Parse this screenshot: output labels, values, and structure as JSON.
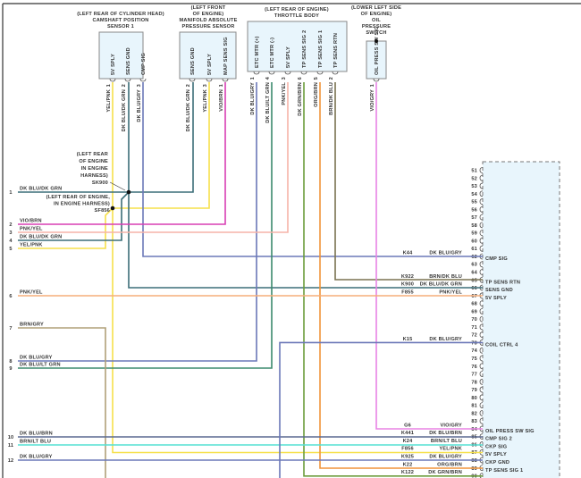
{
  "components": [
    {
      "id": "cam",
      "title": [
        "(LEFT REAR OF CYLINDER HEAD)",
        "CAMSHAFT POSITION",
        "SENSOR 1"
      ],
      "pins": [
        {
          "name": "5V SPLY",
          "num": "1",
          "wire": "YEL/PNK"
        },
        {
          "name": "SENS GND",
          "num": "2",
          "wire": "DK BLU/DK GRN"
        },
        {
          "name": "CMP SIG",
          "num": "3",
          "wire": "DK BLU/GRY"
        }
      ]
    },
    {
      "id": "map",
      "title": [
        "(LEFT FRONT",
        "OF ENGINE)",
        "MANIFOLD ABSOLUTE",
        "PRESSURE SENSOR"
      ],
      "pins": [
        {
          "name": "SENS GND",
          "num": "2",
          "wire": "DK BLU/DK GRN"
        },
        {
          "name": "5V SPLY",
          "num": "3",
          "wire": "YEL/PNK"
        },
        {
          "name": "MAP SENS SIG",
          "num": "1",
          "wire": "VIO/BRN"
        }
      ]
    },
    {
      "id": "tb",
      "title": [
        "(LEFT REAR OF ENGINE)",
        "THROTTLE BODY"
      ],
      "pins": [
        {
          "name": "ETC MTR (+)",
          "num": "1",
          "wire": "DK BLU/GRY"
        },
        {
          "name": "ETC MTR (-)",
          "num": "4",
          "wire": "DK BLU/LT GRN"
        },
        {
          "name": "5V SPLY",
          "num": "3",
          "wire": "PNK/YEL"
        },
        {
          "name": "TP SENS SIG 2",
          "num": "6",
          "wire": "DK GRN/BRN"
        },
        {
          "name": "TP SENS SIG 1",
          "num": "5",
          "wire": "ORG/BRN"
        },
        {
          "name": "TP SENS RTN",
          "num": "2",
          "wire": "BRN/DK BLU"
        }
      ]
    },
    {
      "id": "oil",
      "title": [
        "(LOWER LEFT SIDE",
        "OF ENGINE)",
        "OIL",
        "PRESSURE",
        "SWITCH"
      ],
      "pins": [
        {
          "name": "OIL PRESS SW SIG",
          "num": "1",
          "wire": "VIO/GRY"
        }
      ]
    }
  ],
  "splices": [
    {
      "id": "SK900",
      "location": [
        "(LEFT REAR",
        "OF ENGINE",
        "IN ENGINE",
        "HARNESS)"
      ]
    },
    {
      "id": "SF856",
      "location": [
        "(LEFT REAR OF ENGINE,",
        "IN ENGINE HARNESS)"
      ]
    }
  ],
  "harness_rows": [
    {
      "num": "1",
      "wire": "DK BLU/DK GRN"
    },
    {
      "num": "2",
      "wire": "VIO/BRN"
    },
    {
      "num": "3",
      "wire": "PNK/YEL"
    },
    {
      "num": "4",
      "wire": "DK BLU/DK GRN"
    },
    {
      "num": "5",
      "wire": "YEL/PNK"
    },
    {
      "num": "6",
      "wire": "PNK/YEL"
    },
    {
      "num": "7",
      "wire": "BRN/GRY"
    },
    {
      "num": "8",
      "wire": "DK BLU/GRY"
    },
    {
      "num": "9",
      "wire": "DK BLU/LT GRN"
    },
    {
      "num": "10",
      "wire": "DK BLU/BRN"
    },
    {
      "num": "11",
      "wire": "BRN/LT BLU"
    },
    {
      "num": "12",
      "wire": "DK BLU/GRY"
    }
  ],
  "pcm": {
    "pin_numbers": [
      "51",
      "52",
      "53",
      "54",
      "55",
      "56",
      "57",
      "58",
      "59",
      "60",
      "61",
      "62",
      "63",
      "64",
      "65",
      "66",
      "67",
      "68",
      "69",
      "70",
      "71",
      "72",
      "73",
      "74",
      "75",
      "76",
      "77",
      "78",
      "79",
      "80",
      "81",
      "82",
      "83",
      "84",
      "85",
      "86",
      "87",
      "88",
      "89",
      "90"
    ],
    "connections": [
      {
        "pin": "62",
        "circuit": "K44",
        "wire": "DK BLU/GRY",
        "function": "CMP SIG"
      },
      {
        "pin": "65",
        "circuit": "K922",
        "wire": "BRN/DK BLU",
        "function": "TP SENS RTN"
      },
      {
        "pin": "66",
        "circuit": "K900",
        "wire": "DK BLU/DK GRN",
        "function": "SENS GND"
      },
      {
        "pin": "67",
        "circuit": "F855",
        "wire": "PNK/YEL",
        "function": "5V SPLY"
      },
      {
        "pin": "73",
        "circuit": "K15",
        "wire": "DK BLU/GRY",
        "function": "COIL CTRL 4"
      },
      {
        "pin": "84",
        "circuit": "G6",
        "wire": "VIO/GRY",
        "function": "OIL PRESS SW SIG"
      },
      {
        "pin": "85",
        "circuit": "K441",
        "wire": "DK BLU/BRN",
        "function": "CMP SIG 2"
      },
      {
        "pin": "86",
        "circuit": "K24",
        "wire": "BRN/LT BLU",
        "function": "CKP SIG"
      },
      {
        "pin": "87",
        "circuit": "F856",
        "wire": "YEL/PNK",
        "function": "5V SPLY"
      },
      {
        "pin": "88",
        "circuit": "K925",
        "wire": "DK BLU/GRY",
        "function": "CKP GND"
      },
      {
        "pin": "89",
        "circuit": "K22",
        "wire": "ORG/BRN",
        "function": "TP SENS SIG 1"
      },
      {
        "pin": "90",
        "circuit": "K122",
        "wire": "DK GRN/BRN",
        "function": ""
      }
    ]
  },
  "wire_colors": {
    "YEL/PNK": "#f6e04a",
    "DK BLU/DK GRN": "#3c6e78",
    "DK BLU/GRY": "#6b78b8",
    "VIO/BRN": "#d83fb4",
    "PNK/YEL": "#f5ad7a",
    "TB PNK/YEL": "#f6b4a8",
    "DK BLU/LT GRN": "#3c8a6e",
    "DK GRN/BRN": "#6c9c3c",
    "ORG/BRN": "#f0943a",
    "BRN/DK BLU": "#7a7250",
    "VIO/GRY": "#e884e4",
    "BRN/GRY": "#b0a078",
    "DK BLU/BRN": "#5a6890",
    "BRN/LT BLU": "#55e0d4"
  }
}
